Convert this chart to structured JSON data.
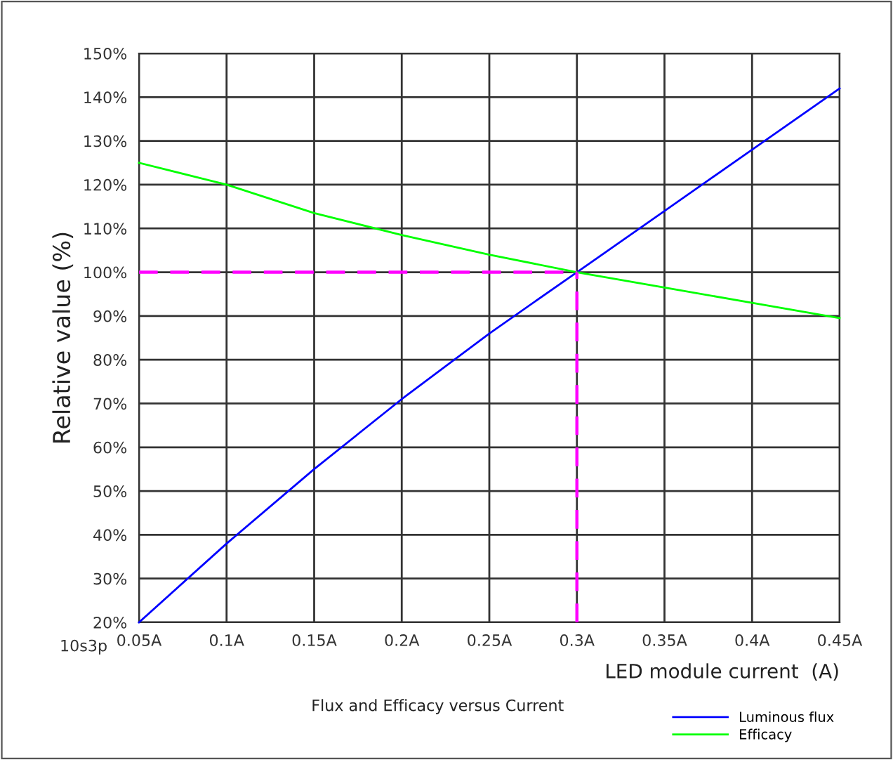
{
  "chart_data": {
    "type": "line",
    "title": "Flux and Efficacy versus Current",
    "xlabel": "LED module current  (A)",
    "ylabel": "Relative value (%)",
    "annotations": [
      "10s3p"
    ],
    "series": [
      {
        "name": "Luminous flux",
        "color": "#0000ff",
        "x": [
          0.05,
          0.1,
          0.15,
          0.2,
          0.25,
          0.3,
          0.35,
          0.4,
          0.45
        ],
        "values": [
          20,
          38,
          55,
          71,
          86,
          100,
          114,
          128,
          142
        ]
      },
      {
        "name": "Efficacy",
        "color": "#00ff00",
        "x": [
          0.05,
          0.1,
          0.15,
          0.2,
          0.25,
          0.3,
          0.35,
          0.4,
          0.45
        ],
        "values": [
          125,
          120,
          113.5,
          108.5,
          104,
          100,
          96.5,
          93,
          89.5
        ]
      },
      {
        "color": "#ff00ff",
        "line_style": "dashed",
        "x": [
          0.05,
          0.3
        ],
        "values": [
          100,
          100
        ]
      },
      {
        "color": "#ff00ff",
        "line_style": "dashed",
        "x": [
          0.3,
          0.3
        ],
        "values": [
          20,
          100
        ]
      }
    ],
    "xlim": [
      0.05,
      0.45
    ],
    "xticks": [
      {
        "value": 0.05,
        "label": "0.05A"
      },
      {
        "value": 0.1,
        "label": "0.1A"
      },
      {
        "value": 0.15,
        "label": "0.15A"
      },
      {
        "value": 0.2,
        "label": "0.2A"
      },
      {
        "value": 0.25,
        "label": "0.25A"
      },
      {
        "value": 0.3,
        "label": "0.3A"
      },
      {
        "value": 0.35,
        "label": "0.35A"
      },
      {
        "value": 0.4,
        "label": "0.4A"
      },
      {
        "value": 0.45,
        "label": "0.45A"
      }
    ],
    "ylim": [
      20,
      150
    ],
    "yticks": [
      {
        "value": 20,
        "label": "20%"
      },
      {
        "value": 30,
        "label": "30%"
      },
      {
        "value": 40,
        "label": "40%"
      },
      {
        "value": 50,
        "label": "50%"
      },
      {
        "value": 60,
        "label": "60%"
      },
      {
        "value": 70,
        "label": "70%"
      },
      {
        "value": 80,
        "label": "80%"
      },
      {
        "value": 90,
        "label": "90%"
      },
      {
        "value": 100,
        "label": "100%"
      },
      {
        "value": 110,
        "label": "110%"
      },
      {
        "value": 120,
        "label": "120%"
      },
      {
        "value": 130,
        "label": "130%"
      },
      {
        "value": 140,
        "label": "140%"
      },
      {
        "value": 150,
        "label": "150%"
      }
    ],
    "grid": true,
    "legend": "bottom right",
    "marker": "none",
    "line_style": "solid"
  }
}
